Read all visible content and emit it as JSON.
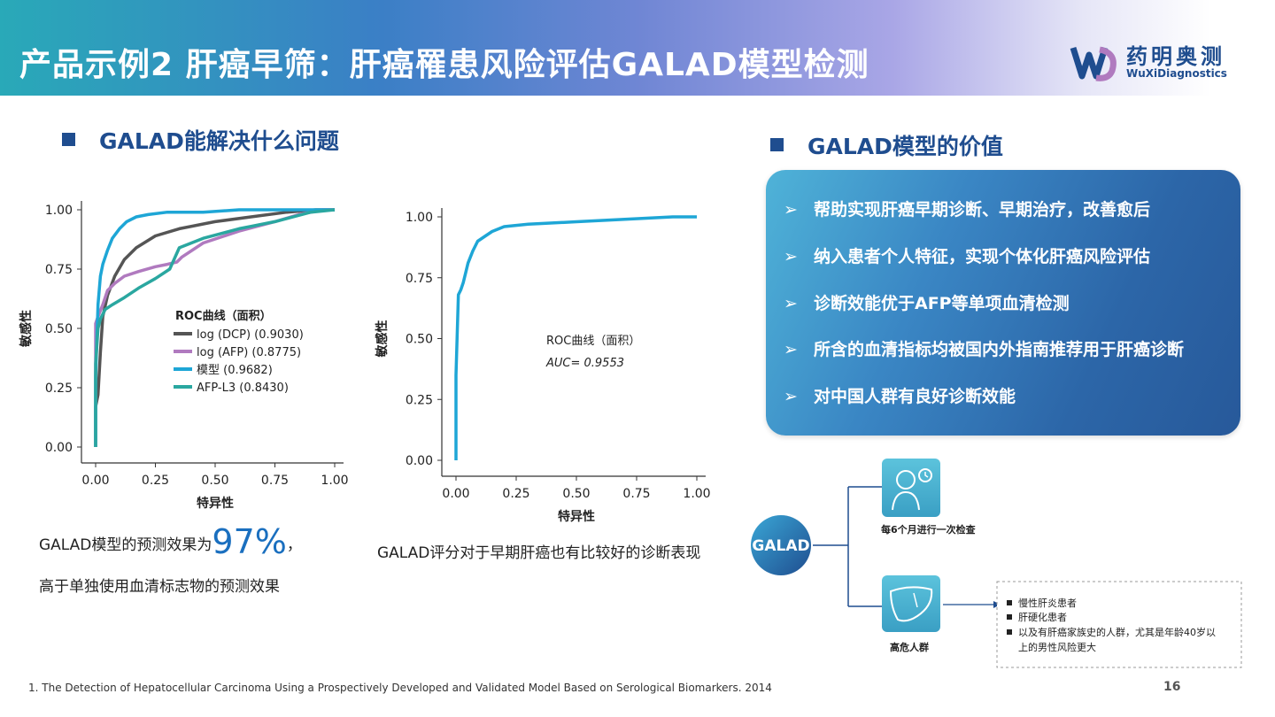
{
  "header": {
    "title": "产品示例2 肝癌早筛：肝癌罹患风险评估GALAD模型检测",
    "logo_cn": "药明奥测",
    "logo_en": "WuXiDiagnostics"
  },
  "left_section": {
    "title": "GALAD能解决什么问题",
    "caption1_prefix": "GALAD模型的预测效果为",
    "caption1_value": "97%",
    "caption1_suffix": "，",
    "caption2": "高于单独使用血清标志物的预测效果",
    "caption3": "GALAD评分对于早期肝癌也有比较好的诊断表现"
  },
  "right_section": {
    "title": "GALAD模型的价值",
    "items": [
      "帮助实现肝癌早期诊断、早期治疗，改善愈后",
      "纳入患者个人特征，实现个体化肝癌风险评估",
      "诊断效能优于AFP等单项血清检测",
      "所含的血清指标均被国内外指南推荐用于肝癌诊断",
      "对中国人群有良好诊断效能"
    ],
    "arrow_glyph": "➢"
  },
  "flow": {
    "root": "GALAD",
    "branch1_label": "每6个月进行一次检查",
    "branch2_label": "高危人群",
    "note_bullets": [
      "慢性肝炎患者",
      "肝硬化患者",
      "以及有肝癌家族史的人群，尤其是年龄40岁以",
      "上的男性风险更大"
    ],
    "icons": [
      "doctor-icon",
      "liver-icon"
    ]
  },
  "footnote": "1.  The Detection of Hepatocellular Carcinoma Using a Prospectively Developed and Validated Model Based on Serological Biomarkers. 2014",
  "page_number": "16",
  "colors": {
    "brand": "#1f4d8f",
    "accent": "#1a6fbf",
    "dcp": "#555555",
    "afp": "#b07abf",
    "model": "#1ea6d6",
    "afpl3": "#2aa7a0"
  },
  "chart_data": [
    {
      "type": "line",
      "xlabel": "特异性",
      "ylabel": "敏感性",
      "xlim": [
        0,
        1
      ],
      "ylim": [
        0,
        1
      ],
      "xticks": [
        "0.00",
        "0.25",
        "0.50",
        "0.75",
        "1.00"
      ],
      "yticks": [
        "0.00",
        "0.25",
        "0.50",
        "0.75",
        "1.00"
      ],
      "legend_title": "ROC曲线（面积）",
      "legend_position": "center",
      "series": [
        {
          "name": "log (DCP) (0.9030)",
          "color": "#555555",
          "x": [
            0,
            0,
            0.01,
            0.02,
            0.03,
            0.05,
            0.08,
            0.12,
            0.17,
            0.25,
            0.35,
            0.5,
            0.65,
            0.8,
            0.92,
            1
          ],
          "y": [
            0,
            0.17,
            0.22,
            0.4,
            0.55,
            0.64,
            0.72,
            0.79,
            0.84,
            0.89,
            0.92,
            0.95,
            0.97,
            0.99,
            1,
            1
          ]
        },
        {
          "name": "log (AFP) (0.8775)",
          "color": "#b07abf",
          "x": [
            0,
            0,
            0.01,
            0.03,
            0.05,
            0.08,
            0.12,
            0.18,
            0.25,
            0.3,
            0.34,
            0.36,
            0.45,
            0.6,
            0.75,
            0.85,
            0.95,
            1
          ],
          "y": [
            0,
            0.52,
            0.55,
            0.6,
            0.66,
            0.69,
            0.72,
            0.74,
            0.76,
            0.77,
            0.78,
            0.8,
            0.86,
            0.91,
            0.95,
            0.98,
            1,
            1
          ]
        },
        {
          "name": "模型 (0.9682)",
          "color": "#1ea6d6",
          "x": [
            0,
            0,
            0.01,
            0.02,
            0.03,
            0.05,
            0.07,
            0.1,
            0.13,
            0.17,
            0.22,
            0.3,
            0.45,
            0.6,
            0.8,
            1
          ],
          "y": [
            0,
            0.3,
            0.6,
            0.72,
            0.77,
            0.83,
            0.88,
            0.92,
            0.95,
            0.97,
            0.98,
            0.99,
            0.99,
            1,
            1,
            1
          ]
        },
        {
          "name": "AFP-L3 (0.8430)",
          "color": "#2aa7a0",
          "x": [
            0,
            0,
            0.01,
            0.02,
            0.04,
            0.07,
            0.12,
            0.18,
            0.25,
            0.31,
            0.35,
            0.45,
            0.6,
            0.75,
            0.9,
            1
          ],
          "y": [
            0,
            0.35,
            0.5,
            0.54,
            0.58,
            0.6,
            0.63,
            0.67,
            0.71,
            0.75,
            0.84,
            0.88,
            0.92,
            0.95,
            0.99,
            1
          ]
        }
      ]
    },
    {
      "type": "line",
      "xlabel": "特异性",
      "ylabel": "敏感性",
      "xlim": [
        0,
        1
      ],
      "ylim": [
        0,
        1
      ],
      "xticks": [
        "0.00",
        "0.25",
        "0.50",
        "0.75",
        "1.00"
      ],
      "yticks": [
        "0.00",
        "0.25",
        "0.50",
        "0.75",
        "1.00"
      ],
      "annotation_title": "ROC曲线（面积）",
      "annotation_auc": "AUC= 0.9553",
      "series": [
        {
          "color": "#1ea6d6",
          "x": [
            0,
            0,
            0.01,
            0.02,
            0.03,
            0.04,
            0.05,
            0.07,
            0.09,
            0.12,
            0.15,
            0.2,
            0.3,
            0.4,
            0.5,
            0.6,
            0.7,
            0.8,
            0.9,
            1
          ],
          "y": [
            0,
            0.35,
            0.68,
            0.7,
            0.73,
            0.77,
            0.81,
            0.86,
            0.9,
            0.92,
            0.94,
            0.96,
            0.97,
            0.975,
            0.98,
            0.985,
            0.99,
            0.995,
            1,
            1
          ]
        }
      ]
    }
  ]
}
